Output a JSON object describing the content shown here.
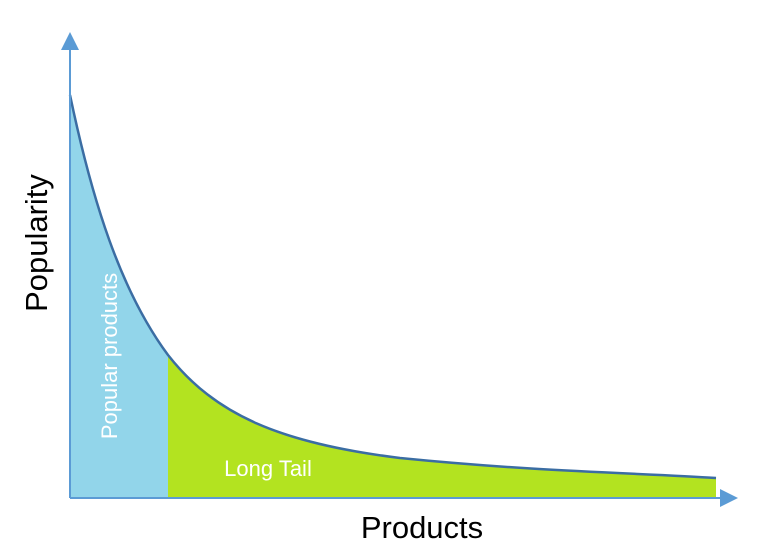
{
  "diagram": {
    "y_axis_label": "Popularity",
    "x_axis_label": "Products",
    "regions": [
      {
        "label": "Popular products",
        "color": "#92d5ea"
      },
      {
        "label": "Long Tail",
        "color": "#b3e320"
      }
    ],
    "colors": {
      "axis": "#5b9bd5",
      "curve": "#3b6da3"
    }
  }
}
